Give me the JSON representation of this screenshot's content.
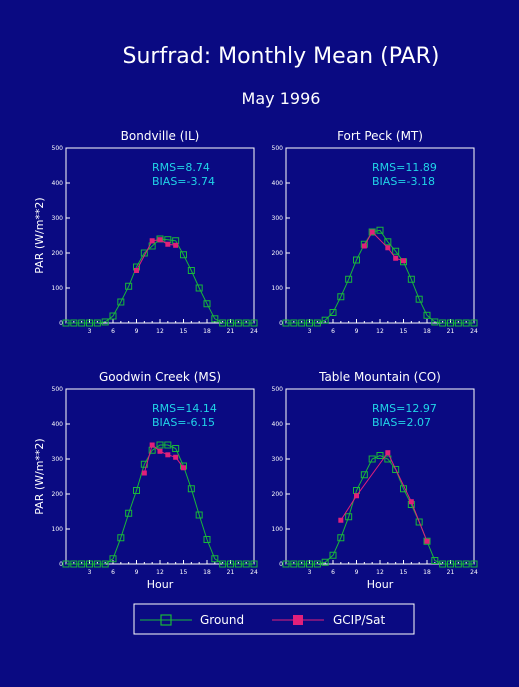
{
  "title": "Surfrad: Monthly Mean (PAR)",
  "subtitle": "May 1996",
  "colors": {
    "background": "#0a0a82",
    "text": "#ffffff",
    "stats": "#21d4e8",
    "ground": "#18b83a",
    "sat": "#e0207a"
  },
  "legend": {
    "ground_label": "Ground",
    "sat_label": "GCIP/Sat",
    "placement": "bottom-center"
  },
  "chart_data": [
    {
      "type": "line",
      "title": "Bondville (IL)",
      "stats": [
        "RMS=8.74",
        "BIAS=-3.74"
      ],
      "ylabel": "PAR (W/m**2)",
      "xlabel": "",
      "xlim": [
        0,
        24
      ],
      "ylim": [
        0,
        500
      ],
      "xticks": [
        3,
        6,
        9,
        12,
        15,
        18,
        21,
        24
      ],
      "yticks": [
        0,
        100,
        200,
        300,
        400,
        500
      ],
      "series": [
        {
          "name": "Ground",
          "x": [
            0,
            1,
            2,
            3,
            4,
            5,
            6,
            7,
            8,
            9,
            10,
            11,
            12,
            13,
            14,
            15,
            16,
            17,
            18,
            19,
            20,
            21,
            22,
            23,
            24
          ],
          "values": [
            0,
            0,
            0,
            0,
            0,
            3,
            20,
            60,
            105,
            160,
            200,
            220,
            240,
            238,
            235,
            195,
            150,
            100,
            55,
            12,
            0,
            0,
            0,
            0,
            0
          ]
        },
        {
          "name": "GCIP/Sat",
          "x": [
            9,
            11,
            12,
            13,
            14
          ],
          "values": [
            150,
            235,
            238,
            225,
            222
          ]
        }
      ]
    },
    {
      "type": "line",
      "title": "Fort Peck (MT)",
      "stats": [
        "RMS=11.89",
        "BIAS=-3.18"
      ],
      "ylabel": "",
      "xlabel": "",
      "xlim": [
        0,
        24
      ],
      "ylim": [
        0,
        500
      ],
      "xticks": [
        3,
        6,
        9,
        12,
        15,
        18,
        21,
        24
      ],
      "yticks": [
        0,
        100,
        200,
        300,
        400,
        500
      ],
      "series": [
        {
          "name": "Ground",
          "x": [
            0,
            1,
            2,
            3,
            4,
            5,
            6,
            7,
            8,
            9,
            10,
            11,
            12,
            13,
            14,
            15,
            16,
            17,
            18,
            19,
            20,
            21,
            22,
            23,
            24
          ],
          "values": [
            0,
            0,
            0,
            0,
            0,
            8,
            30,
            75,
            125,
            180,
            225,
            260,
            265,
            232,
            205,
            175,
            125,
            68,
            22,
            3,
            0,
            0,
            0,
            0,
            0
          ]
        },
        {
          "name": "GCIP/Sat",
          "x": [
            10,
            11,
            13,
            14,
            15
          ],
          "values": [
            220,
            260,
            215,
            185,
            178
          ]
        }
      ]
    },
    {
      "type": "line",
      "title": "Goodwin Creek (MS)",
      "stats": [
        "RMS=14.14",
        "BIAS=-6.15"
      ],
      "ylabel": "PAR (W/m**2)",
      "xlabel": "Hour",
      "xlim": [
        0,
        24
      ],
      "ylim": [
        0,
        500
      ],
      "xticks": [
        3,
        6,
        9,
        12,
        15,
        18,
        21,
        24
      ],
      "yticks": [
        0,
        100,
        200,
        300,
        400,
        500
      ],
      "series": [
        {
          "name": "Ground",
          "x": [
            0,
            1,
            2,
            3,
            4,
            5,
            6,
            7,
            8,
            9,
            10,
            11,
            12,
            13,
            14,
            15,
            16,
            17,
            18,
            19,
            20,
            21,
            22,
            23,
            24
          ],
          "values": [
            0,
            0,
            0,
            0,
            0,
            0,
            15,
            75,
            145,
            210,
            285,
            325,
            340,
            340,
            330,
            280,
            215,
            140,
            70,
            15,
            0,
            0,
            0,
            0,
            0
          ]
        },
        {
          "name": "GCIP/Sat",
          "x": [
            10,
            11,
            12,
            13,
            14,
            15
          ],
          "values": [
            260,
            340,
            322,
            312,
            305,
            275
          ]
        }
      ]
    },
    {
      "type": "line",
      "title": "Table Mountain (CO)",
      "stats": [
        "RMS=12.97",
        "BIAS=2.07"
      ],
      "ylabel": "",
      "xlabel": "Hour",
      "xlim": [
        0,
        24
      ],
      "ylim": [
        0,
        500
      ],
      "xticks": [
        3,
        6,
        9,
        12,
        15,
        18,
        21,
        24
      ],
      "yticks": [
        0,
        100,
        200,
        300,
        400,
        500
      ],
      "series": [
        {
          "name": "Ground",
          "x": [
            0,
            1,
            2,
            3,
            4,
            5,
            6,
            7,
            8,
            9,
            10,
            11,
            12,
            13,
            14,
            15,
            16,
            17,
            18,
            19,
            20,
            21,
            22,
            23,
            24
          ],
          "values": [
            0,
            0,
            0,
            0,
            0,
            5,
            25,
            75,
            135,
            210,
            255,
            300,
            310,
            300,
            270,
            215,
            170,
            120,
            65,
            10,
            0,
            0,
            0,
            0,
            0
          ]
        },
        {
          "name": "GCIP/Sat",
          "x": [
            7,
            9,
            13,
            16,
            18
          ],
          "values": [
            125,
            195,
            318,
            178,
            65
          ]
        }
      ]
    }
  ]
}
